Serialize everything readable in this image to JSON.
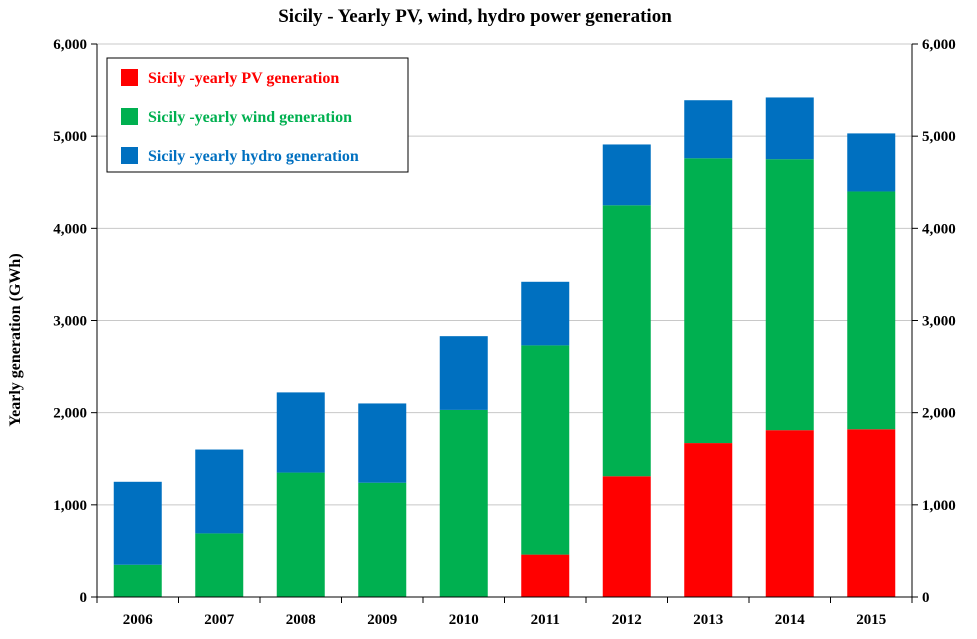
{
  "chart_data": {
    "type": "bar",
    "stacked": true,
    "title": "Sicily - Yearly PV, wind, hydro power generation",
    "xlabel": "",
    "ylabel": "Yearly generation (GWh)",
    "ylim": [
      0,
      6000
    ],
    "yticks": [
      "0",
      "1,000",
      "2,000",
      "3,000",
      "4,000",
      "5,000",
      "6,000"
    ],
    "secondary_y_axis": true,
    "grid": true,
    "legend_position": "top-left",
    "categories": [
      "2006",
      "2007",
      "2008",
      "2009",
      "2010",
      "2011",
      "2012",
      "2013",
      "2014",
      "2015"
    ],
    "series": [
      {
        "name": "Sicily -yearly PV generation",
        "color": "#ff0000",
        "values": [
          0,
          0,
          0,
          0,
          0,
          460,
          1310,
          1670,
          1810,
          1820
        ]
      },
      {
        "name": "Sicily -yearly wind generation",
        "color": "#00b050",
        "values": [
          350,
          690,
          1350,
          1240,
          2030,
          2270,
          2940,
          3090,
          2940,
          2580
        ]
      },
      {
        "name": "Sicily -yearly hydro generation",
        "color": "#0070c0",
        "values": [
          900,
          910,
          870,
          860,
          800,
          690,
          660,
          630,
          670,
          630
        ]
      }
    ]
  }
}
